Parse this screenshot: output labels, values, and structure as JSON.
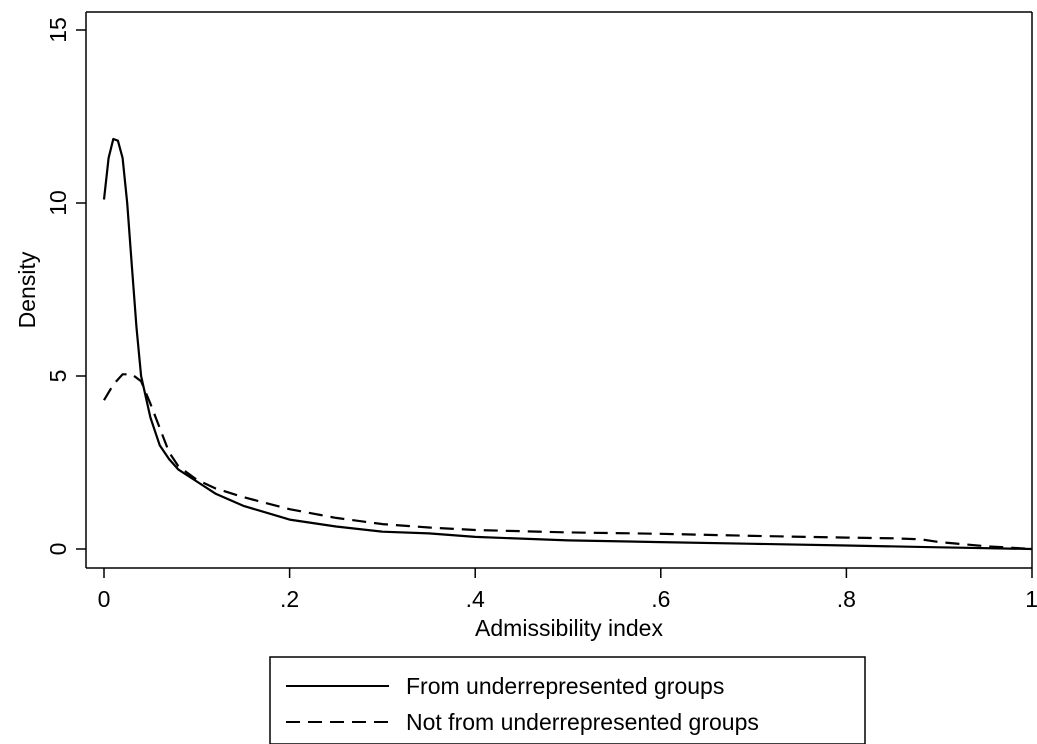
{
  "chart_data": {
    "type": "line",
    "xlabel": "Admissibility index",
    "ylabel": "Density",
    "xlim": [
      0,
      1
    ],
    "ylim": [
      0,
      15
    ],
    "x_ticks": [
      {
        "value": 0,
        "label": "0"
      },
      {
        "value": 0.2,
        "label": ".2"
      },
      {
        "value": 0.4,
        "label": ".4"
      },
      {
        "value": 0.6,
        "label": ".6"
      },
      {
        "value": 0.8,
        "label": ".8"
      },
      {
        "value": 1,
        "label": "1"
      }
    ],
    "y_ticks": [
      {
        "value": 0,
        "label": "0"
      },
      {
        "value": 5,
        "label": "5"
      },
      {
        "value": 10,
        "label": "10"
      },
      {
        "value": 15,
        "label": "15"
      }
    ],
    "grid": false,
    "legend_position": "bottom",
    "series": [
      {
        "name": "From underrepresented groups",
        "style": "solid",
        "color": "#000000",
        "x": [
          0,
          0.005,
          0.01,
          0.015,
          0.02,
          0.025,
          0.03,
          0.035,
          0.04,
          0.05,
          0.06,
          0.07,
          0.08,
          0.1,
          0.12,
          0.15,
          0.2,
          0.25,
          0.3,
          0.35,
          0.4,
          0.5,
          0.6,
          0.7,
          0.8,
          0.9,
          1.0
        ],
        "y": [
          10.1,
          11.3,
          11.85,
          11.8,
          11.3,
          10.0,
          8.2,
          6.4,
          5.0,
          3.8,
          3.0,
          2.6,
          2.3,
          1.95,
          1.6,
          1.25,
          0.85,
          0.65,
          0.5,
          0.45,
          0.35,
          0.25,
          0.2,
          0.15,
          0.1,
          0.05,
          0.0
        ]
      },
      {
        "name": "Not from underrepresented groups",
        "style": "dashed",
        "color": "#000000",
        "x": [
          0,
          0.01,
          0.02,
          0.03,
          0.04,
          0.05,
          0.06,
          0.07,
          0.08,
          0.1,
          0.12,
          0.15,
          0.2,
          0.25,
          0.3,
          0.35,
          0.4,
          0.5,
          0.6,
          0.7,
          0.8,
          0.85,
          0.88,
          0.9,
          0.95,
          1.0
        ],
        "y": [
          4.3,
          4.75,
          5.05,
          5.05,
          4.85,
          4.2,
          3.5,
          2.8,
          2.4,
          2.0,
          1.75,
          1.5,
          1.15,
          0.9,
          0.72,
          0.62,
          0.55,
          0.48,
          0.44,
          0.38,
          0.33,
          0.31,
          0.28,
          0.2,
          0.08,
          0.0
        ]
      }
    ]
  }
}
